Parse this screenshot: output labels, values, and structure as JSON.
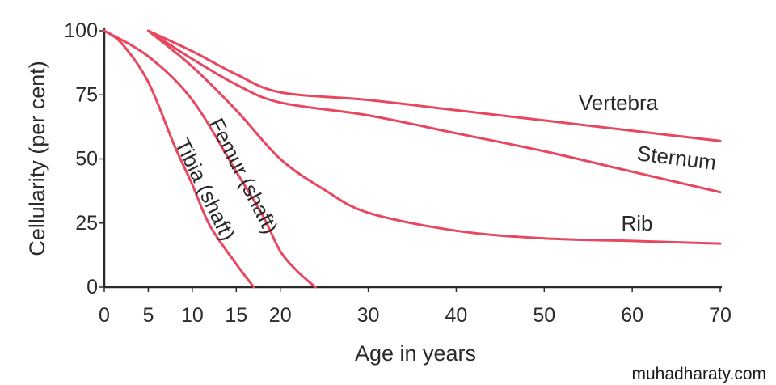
{
  "chart_data": {
    "type": "line",
    "xlabel": "Age in years",
    "ylabel": "Cellularity (per cent)",
    "xlim": [
      0,
      70
    ],
    "ylim": [
      0,
      100
    ],
    "x_ticks": [
      0,
      5,
      10,
      15,
      20,
      30,
      40,
      50,
      60,
      70
    ],
    "y_ticks": [
      0,
      25,
      50,
      75,
      100
    ],
    "grid": false,
    "legend": "none",
    "line_color": "#e8475f",
    "series": [
      {
        "name": "Vertebra",
        "x": [
          5,
          10,
          15,
          20,
          30,
          40,
          50,
          60,
          70
        ],
        "y": [
          100,
          92,
          83,
          76,
          73,
          69,
          65,
          61,
          57
        ]
      },
      {
        "name": "Sternum",
        "x": [
          5,
          10,
          15,
          20,
          30,
          40,
          50,
          60,
          70
        ],
        "y": [
          100,
          89,
          79,
          72,
          67,
          60,
          53,
          45,
          37
        ]
      },
      {
        "name": "Rib",
        "x": [
          5,
          10,
          15,
          20,
          25,
          30,
          40,
          50,
          60,
          70
        ],
        "y": [
          100,
          86,
          69,
          50,
          38,
          29,
          22,
          19,
          18,
          17
        ]
      },
      {
        "name": "Femur (shaft)",
        "x": [
          0,
          5,
          10,
          15,
          18,
          20,
          22,
          24
        ],
        "y": [
          100,
          90,
          73,
          45,
          28,
          14,
          6,
          0
        ]
      },
      {
        "name": "Tibia (shaft)",
        "x": [
          0,
          2,
          5,
          8,
          10,
          12,
          15,
          17
        ],
        "y": [
          100,
          95,
          80,
          55,
          40,
          24,
          9,
          0
        ]
      }
    ]
  },
  "watermark": "muhadharaty.com"
}
